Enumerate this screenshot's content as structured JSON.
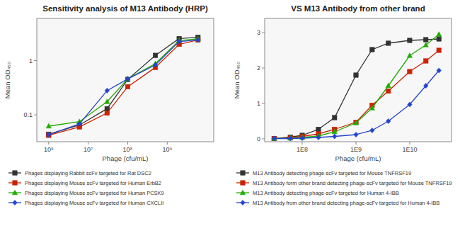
{
  "chart_data": [
    {
      "type": "line",
      "title": "Sensitivity analysis of M13 Antibody (HRP)",
      "x_label": "Phage (cfu/mL)",
      "y_label": "Mean OD₄₅₀",
      "log": true,
      "x": [
        1000000.0,
        6000000.0,
        30000000.0,
        100000000.0,
        500000000.0,
        2000000000.0,
        6000000000.0
      ],
      "series": [
        {
          "name": "Phages displaying Rabbit scFv targeted for Rat DSC2",
          "color": "#333333",
          "marker": "square",
          "values": [
            0.044,
            0.065,
            0.13,
            0.45,
            1.25,
            2.55,
            2.7
          ]
        },
        {
          "name": "Phages displaying Mouse scFv targeted for Human ErbB2",
          "color": "#cc2200",
          "marker": "square",
          "values": [
            0.042,
            0.06,
            0.108,
            0.33,
            0.75,
            2.0,
            2.4
          ]
        },
        {
          "name": "Phages displaying Mouse scFv targeted for Human PCSK9",
          "color": "#22aa00",
          "marker": "triangle",
          "values": [
            0.062,
            0.075,
            0.175,
            0.46,
            0.88,
            2.35,
            2.52
          ]
        },
        {
          "name": "Phages displaying Mouse scFv targeted for Human CXCLII",
          "color": "#2244cc",
          "marker": "diamond",
          "values": [
            0.043,
            0.068,
            0.28,
            0.46,
            0.83,
            2.25,
            2.4
          ]
        }
      ],
      "xlim": [
        500000.0,
        15000000000.0
      ],
      "ylim": [
        0.032,
        6.0
      ],
      "xticks": [
        {
          "value": 1000000,
          "label": "10⁶"
        },
        {
          "value": 10000000,
          "label": "10⁷"
        },
        {
          "value": 100000000,
          "label": "10⁸"
        },
        {
          "value": 1000000000,
          "label": "10⁹"
        }
      ],
      "yticks": [
        0.1,
        1
      ],
      "grid": false,
      "legend": "bottom"
    },
    {
      "type": "line",
      "title": "VS M13 Antibody from other brand",
      "x_label": "Phage (cfu/mL)",
      "y_label": "Mean OD₄₅₀",
      "log": "x",
      "x": [
        30000000.0,
        60000000.0,
        100000000.0,
        200000000.0,
        400000000.0,
        1000000000.0,
        2000000000.0,
        4000000000.0,
        10000000000.0,
        20000000000.0,
        35000000000.0
      ],
      "series": [
        {
          "name": "M13 Antibody detecting phage-scFv targeted for Mouse TNFRSF19",
          "color": "#333333",
          "marker": "square",
          "values": [
            0.01,
            0.05,
            0.1,
            0.27,
            0.6,
            1.8,
            2.52,
            2.7,
            2.78,
            2.8,
            2.82
          ]
        },
        {
          "name": "M13 Antibody form other brand detecting phage-scFv targeted for Mouse TNFRSF19",
          "color": "#cc2200",
          "marker": "square",
          "values": [
            0.01,
            0.03,
            0.07,
            0.14,
            0.27,
            0.47,
            0.95,
            1.35,
            1.9,
            2.2,
            2.5
          ]
        },
        {
          "name": "M13 Antibody detecting phage-scFv targeted for Human 4-IBB",
          "color": "#22aa00",
          "marker": "triangle",
          "values": [
            0.01,
            0.02,
            0.04,
            0.08,
            0.2,
            0.45,
            0.87,
            1.5,
            2.35,
            2.65,
            2.95
          ]
        },
        {
          "name": "M13 Antibody from other brand detecting phage-scFv targeted for Human 4-IBB",
          "color": "#2244cc",
          "marker": "diamond",
          "values": [
            0.01,
            0.01,
            0.02,
            0.04,
            0.07,
            0.12,
            0.24,
            0.5,
            0.97,
            1.5,
            1.93
          ]
        }
      ],
      "xlim": [
        20000000.0,
        60000000000.0
      ],
      "ylim": [
        -0.08,
        3.4
      ],
      "xticks": [
        {
          "value": 100000000,
          "label": "1E8"
        },
        {
          "value": 1000000000,
          "label": "1E9"
        },
        {
          "value": 10000000000,
          "label": "1E10"
        }
      ],
      "yticks": [
        0,
        1,
        2,
        3
      ],
      "grid": false,
      "legend": "bottom"
    }
  ]
}
